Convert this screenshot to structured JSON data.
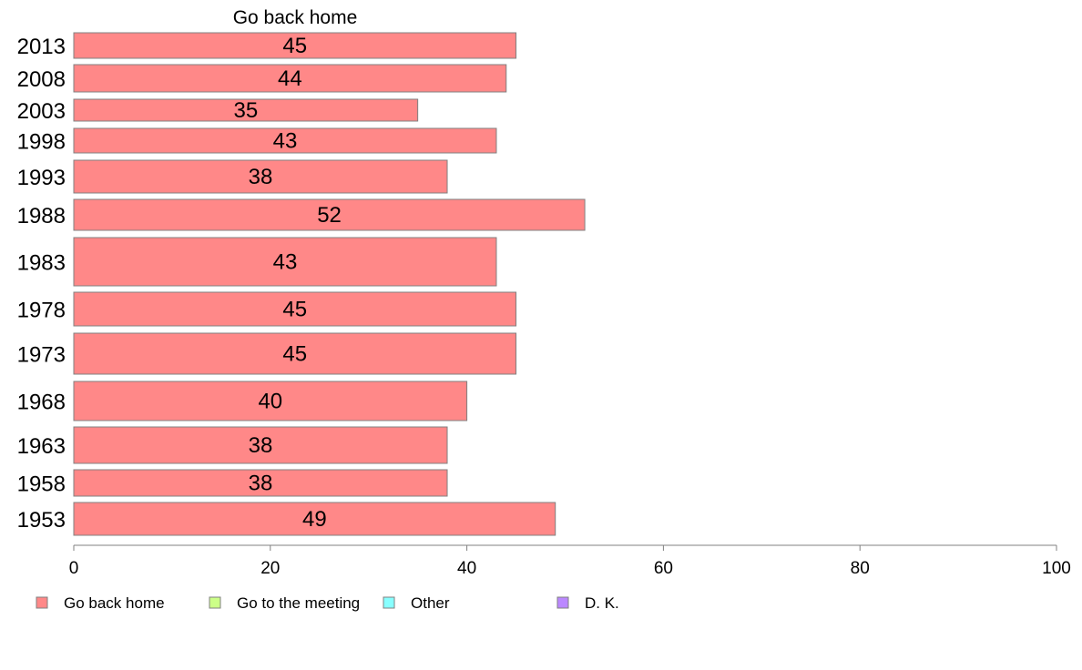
{
  "chart_data": {
    "type": "bar",
    "orientation": "horizontal",
    "title": "Go back home",
    "categories": [
      "2013",
      "2008",
      "2003",
      "1998",
      "1993",
      "1988",
      "1983",
      "1978",
      "1973",
      "1968",
      "1963",
      "1958",
      "1953"
    ],
    "series": [
      {
        "name": "Go back home",
        "color": "#ff8888",
        "values": [
          45,
          44,
          35,
          43,
          38,
          52,
          43,
          45,
          45,
          40,
          38,
          38,
          49
        ]
      }
    ],
    "xlim": [
      0,
      100
    ],
    "xticks": [
      0,
      20,
      40,
      60,
      80,
      100
    ],
    "legend": [
      {
        "label": "Go back home",
        "color": "#ff8888"
      },
      {
        "label": "Go to the meeting",
        "color": "#ccff88"
      },
      {
        "label": "Other",
        "color": "#88ffff"
      },
      {
        "label": "D. K.",
        "color": "#bb88ff"
      }
    ],
    "legend_position": "bottom",
    "grid": false,
    "xlabel": "",
    "ylabel": ""
  }
}
